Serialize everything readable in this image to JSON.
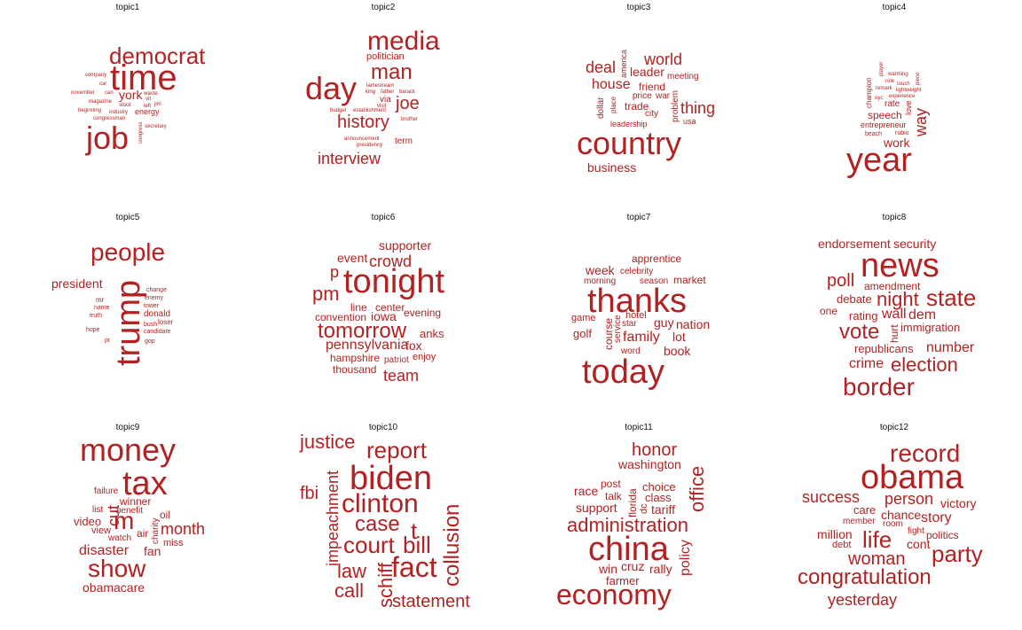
{
  "accent_color": "#b22222",
  "title_color": "#111111",
  "topics": [
    {
      "title": "topic1",
      "words": [
        "democrat",
        "time",
        "york",
        "energy",
        "job",
        "company",
        "car",
        "november",
        "magazine",
        "beginning",
        "congressman",
        "stock",
        "industry",
        "waste",
        "left",
        "secretary",
        "congress",
        "can",
        "jim",
        "vit"
      ]
    },
    {
      "title": "topic2",
      "words": [
        "media",
        "politician",
        "man",
        "day",
        "lamestream",
        "father",
        "barack",
        "king",
        "via",
        "joe",
        "visit",
        "budget",
        "establishment",
        "history",
        "brother",
        "announcement",
        "presidency",
        "term",
        "interview"
      ]
    },
    {
      "title": "topic3",
      "words": [
        "world",
        "america",
        "deal",
        "leader",
        "meeting",
        "house",
        "friend",
        "price",
        "war",
        "dollar",
        "place",
        "trade",
        "problem",
        "thing",
        "city",
        "leadership",
        "usa",
        "country",
        "business"
      ]
    },
    {
      "title": "topic4",
      "words": [
        "player",
        "warming",
        "champion",
        "role",
        "touch",
        "piece",
        "remark",
        "lightweight",
        "nyc",
        "experience",
        "rate",
        "love",
        "speech",
        "way",
        "entrepreneur",
        "beach",
        "rubio",
        "work",
        "year"
      ]
    },
    {
      "title": "topic5",
      "words": [
        "people",
        "president",
        "change",
        "enemy",
        "tower",
        "mr",
        "name",
        "donald",
        "truth",
        "bush",
        "loser",
        "hope",
        "candidate",
        "gop",
        "pr",
        "trump"
      ]
    },
    {
      "title": "topic6",
      "words": [
        "supporter",
        "event",
        "crowd",
        "p",
        "tonight",
        "pm",
        "line",
        "center",
        "convention",
        "iowa",
        "evening",
        "tomorrow",
        "anks",
        "pennsylvania",
        "fox",
        "hampshire",
        "patriot",
        "enjoy",
        "thousand",
        "team"
      ]
    },
    {
      "title": "topic7",
      "words": [
        "apprentice",
        "week",
        "celebrity",
        "morning",
        "season",
        "market",
        "thanks",
        "game",
        "course",
        "hotel",
        "service",
        "star",
        "guy",
        "nation",
        "golf",
        "family",
        "lot",
        "word",
        "book",
        "today"
      ]
    },
    {
      "title": "topic8",
      "words": [
        "endorsement",
        "security",
        "news",
        "poll",
        "amendment",
        "night",
        "state",
        "debate",
        "one",
        "rating",
        "wall",
        "dem",
        "vote",
        "hurt",
        "immigration",
        "republicans",
        "number",
        "crime",
        "election",
        "border"
      ]
    },
    {
      "title": "topic9",
      "words": [
        "money",
        "tax",
        "failure",
        "winner",
        "list",
        "benefit",
        "m",
        "oil",
        "video",
        "air",
        "view",
        "charity",
        "month",
        "watch",
        "cut",
        "miss",
        "disaster",
        "fan",
        "show",
        "obamacare"
      ]
    },
    {
      "title": "topic10",
      "words": [
        "justice",
        "report",
        "biden",
        "fbi",
        "impeachment",
        "clinton",
        "case",
        "t",
        "bill",
        "court",
        "collusion",
        "fact",
        "law",
        "schiff",
        "call",
        "statement"
      ]
    },
    {
      "title": "topic11",
      "words": [
        "honor",
        "washington",
        "office",
        "race",
        "post",
        "choice",
        "talk",
        "class",
        "support",
        "florida",
        "dc",
        "tariff",
        "administration",
        "china",
        "policy",
        "win",
        "cruz",
        "rally",
        "farmer",
        "economy"
      ]
    },
    {
      "title": "topic12",
      "words": [
        "record",
        "obama",
        "success",
        "person",
        "victory",
        "care",
        "chance",
        "story",
        "member",
        "room",
        "million",
        "fight",
        "life",
        "politics",
        "debt",
        "cont",
        "party",
        "woman",
        "congratulation",
        "yesterday"
      ]
    }
  ]
}
